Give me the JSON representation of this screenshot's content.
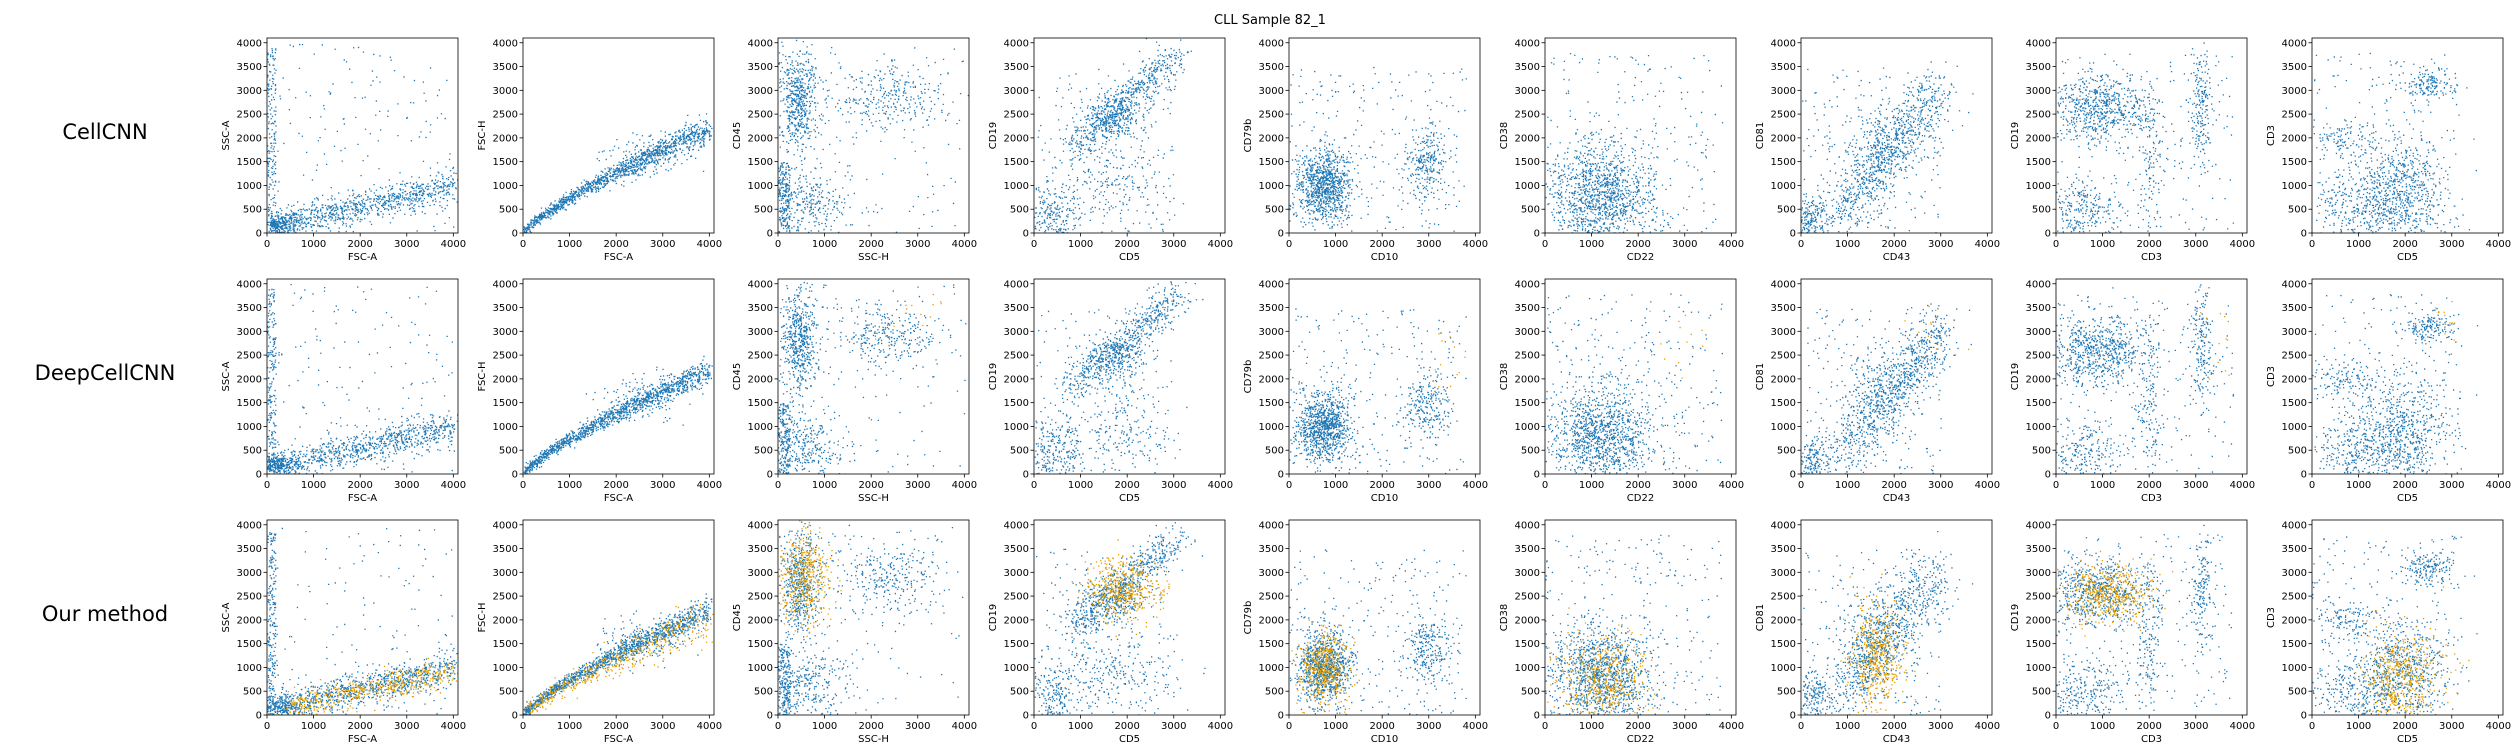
{
  "title": "CLL Sample 82_1",
  "rows": [
    "CellCNN",
    "DeepCellCNN",
    "Our method"
  ],
  "colors": {
    "background_cells": "#1f77b4",
    "selected_cells": "#e69f00",
    "axes": "#000000"
  },
  "chart_data": {
    "type": "scatter",
    "title": "CLL Sample 82_1",
    "grid": false,
    "layout": "3 rows x 9 columns of scatter panels",
    "row_labels": [
      "CellCNN",
      "DeepCellCNN",
      "Our method"
    ],
    "series": [
      {
        "color": "#1f77b4",
        "role": "all cells"
      },
      {
        "color": "#e69f00",
        "role": "cells selected by method (overlay)"
      }
    ],
    "panels": [
      {
        "xlabel": "FSC-A",
        "ylabel": "SSC-A",
        "xlim": [
          0,
          4100
        ],
        "ylim": [
          0,
          4100
        ],
        "xticks": [
          "0",
          "1000",
          "2000",
          "3000",
          "4000"
        ],
        "yticks": [
          "0",
          "500",
          "1000",
          "1500",
          "2000",
          "2500",
          "3000",
          "3500",
          "4000"
        ]
      },
      {
        "xlabel": "FSC-A",
        "ylabel": "FSC-H",
        "xlim": [
          0,
          4100
        ],
        "ylim": [
          0,
          4100
        ],
        "xticks": [
          "0",
          "1000",
          "2000",
          "3000",
          "4000"
        ],
        "yticks": [
          "0",
          "500",
          "1000",
          "1500",
          "2000",
          "2500",
          "3000",
          "3500",
          "4000"
        ]
      },
      {
        "xlabel": "SSC-H",
        "ylabel": "CD45",
        "xlim": [
          0,
          4100
        ],
        "ylim": [
          0,
          4100
        ],
        "xticks": [
          "0",
          "1000",
          "2000",
          "3000",
          "4000"
        ],
        "yticks": [
          "0",
          "500",
          "1000",
          "1500",
          "2000",
          "2500",
          "3000",
          "3500",
          "4000"
        ]
      },
      {
        "xlabel": "CD5",
        "ylabel": "CD19",
        "xlim": [
          0,
          4100
        ],
        "ylim": [
          0,
          4100
        ],
        "xticks": [
          "0",
          "1000",
          "2000",
          "3000",
          "4000"
        ],
        "yticks": [
          "0",
          "500",
          "1000",
          "1500",
          "2000",
          "2500",
          "3000",
          "3500",
          "4000"
        ]
      },
      {
        "xlabel": "CD10",
        "ylabel": "CD79b",
        "xlim": [
          0,
          4100
        ],
        "ylim": [
          0,
          4100
        ],
        "xticks": [
          "0",
          "1000",
          "2000",
          "3000",
          "4000"
        ],
        "yticks": [
          "0",
          "500",
          "1000",
          "1500",
          "2000",
          "2500",
          "3000",
          "3500",
          "4000"
        ]
      },
      {
        "xlabel": "CD22",
        "ylabel": "CD38",
        "xlim": [
          0,
          4100
        ],
        "ylim": [
          0,
          4100
        ],
        "xticks": [
          "0",
          "1000",
          "2000",
          "3000",
          "4000"
        ],
        "yticks": [
          "0",
          "500",
          "1000",
          "1500",
          "2000",
          "2500",
          "3000",
          "3500",
          "4000"
        ]
      },
      {
        "xlabel": "CD43",
        "ylabel": "CD81",
        "xlim": [
          0,
          4100
        ],
        "ylim": [
          0,
          4100
        ],
        "xticks": [
          "0",
          "1000",
          "2000",
          "3000",
          "4000"
        ],
        "yticks": [
          "0",
          "500",
          "1000",
          "1500",
          "2000",
          "2500",
          "3000",
          "3500",
          "4000"
        ]
      },
      {
        "xlabel": "CD3",
        "ylabel": "CD19",
        "xlim": [
          0,
          4100
        ],
        "ylim": [
          0,
          4100
        ],
        "xticks": [
          "0",
          "1000",
          "2000",
          "3000",
          "4000"
        ],
        "yticks": [
          "0",
          "500",
          "1000",
          "1500",
          "2000",
          "2500",
          "3000",
          "3500",
          "4000"
        ]
      },
      {
        "xlabel": "CD5",
        "ylabel": "CD3",
        "xlim": [
          0,
          4100
        ],
        "ylim": [
          0,
          4100
        ],
        "xticks": [
          "0",
          "1000",
          "2000",
          "3000",
          "4000"
        ],
        "yticks": [
          "0",
          "500",
          "1000",
          "1500",
          "2000",
          "2500",
          "3000",
          "3500",
          "4000"
        ]
      }
    ],
    "clusters": [
      [
        {
          "kind": "uniform",
          "x": [
            0,
            4000
          ],
          "y": [
            0,
            4000
          ],
          "weight": 0.12
        },
        {
          "kind": "strip",
          "x": [
            0,
            180
          ],
          "y": [
            100,
            3900
          ],
          "weight": 0.14
        },
        {
          "kind": "line",
          "x": [
            100,
            4000
          ],
          "y": [
            150,
            1000
          ],
          "sx": 80,
          "sy": 170,
          "weight": 0.6
        },
        {
          "kind": "gauss",
          "cx": 250,
          "cy": 200,
          "sx": 200,
          "sy": 120,
          "weight": 0.14
        }
      ],
      [
        {
          "kind": "curve",
          "x": [
            0,
            4000
          ],
          "y": [
            0,
            2200
          ],
          "pow": 0.78,
          "sx": 50,
          "sy": 120,
          "weight": 0.9
        },
        {
          "kind": "gauss",
          "cx": 2600,
          "cy": 1600,
          "sx": 450,
          "sy": 250,
          "weight": 0.1
        }
      ],
      [
        {
          "kind": "gauss",
          "cx": 450,
          "cy": 2800,
          "sx": 220,
          "sy": 550,
          "weight": 0.38
        },
        {
          "kind": "gauss",
          "cx": 2400,
          "cy": 2900,
          "sx": 550,
          "sy": 350,
          "weight": 0.2
        },
        {
          "kind": "gauss",
          "cx": 550,
          "cy": 650,
          "sx": 450,
          "sy": 350,
          "weight": 0.22
        },
        {
          "kind": "strip",
          "x": [
            0,
            250
          ],
          "y": [
            0,
            1500
          ],
          "weight": 0.12
        },
        {
          "kind": "uniform",
          "x": [
            0,
            4000
          ],
          "y": [
            0,
            4000
          ],
          "weight": 0.08
        }
      ],
      [
        {
          "kind": "line",
          "x": [
            800,
            3100
          ],
          "y": [
            1800,
            3800
          ],
          "sx": 200,
          "sy": 180,
          "weight": 0.42
        },
        {
          "kind": "gauss",
          "cx": 1700,
          "cy": 2450,
          "sx": 350,
          "sy": 250,
          "weight": 0.16
        },
        {
          "kind": "gauss",
          "cx": 400,
          "cy": 450,
          "sx": 350,
          "sy": 400,
          "weight": 0.18
        },
        {
          "kind": "gauss",
          "cx": 1800,
          "cy": 900,
          "sx": 600,
          "sy": 450,
          "weight": 0.14
        },
        {
          "kind": "uniform",
          "x": [
            0,
            3000
          ],
          "y": [
            0,
            3500
          ],
          "weight": 0.1
        }
      ],
      [
        {
          "kind": "gauss",
          "cx": 750,
          "cy": 1000,
          "sx": 280,
          "sy": 380,
          "weight": 0.66
        },
        {
          "kind": "gauss",
          "cx": 2950,
          "cy": 1450,
          "sx": 250,
          "sy": 380,
          "weight": 0.16
        },
        {
          "kind": "uniform",
          "x": [
            0,
            3800
          ],
          "y": [
            0,
            3500
          ],
          "weight": 0.18
        }
      ],
      [
        {
          "kind": "gauss",
          "cx": 1200,
          "cy": 800,
          "sx": 550,
          "sy": 550,
          "weight": 0.82
        },
        {
          "kind": "uniform",
          "x": [
            0,
            3800
          ],
          "y": [
            0,
            3800
          ],
          "weight": 0.18
        }
      ],
      [
        {
          "kind": "line",
          "x": [
            800,
            3000
          ],
          "y": [
            400,
            3000
          ],
          "sx": 250,
          "sy": 350,
          "weight": 0.55
        },
        {
          "kind": "gauss",
          "cx": 1600,
          "cy": 1700,
          "sx": 300,
          "sy": 500,
          "weight": 0.15
        },
        {
          "kind": "gauss",
          "cx": 200,
          "cy": 300,
          "sx": 250,
          "sy": 300,
          "weight": 0.15
        },
        {
          "kind": "uniform",
          "x": [
            0,
            3000
          ],
          "y": [
            0,
            3500
          ],
          "weight": 0.15
        }
      ],
      [
        {
          "kind": "gauss",
          "cx": 900,
          "cy": 2600,
          "sx": 550,
          "sy": 350,
          "weight": 0.46
        },
        {
          "kind": "gauss",
          "cx": 3100,
          "cy": 2700,
          "sx": 120,
          "sy": 600,
          "weight": 0.12
        },
        {
          "kind": "gauss",
          "cx": 2000,
          "cy": 1500,
          "sx": 150,
          "sy": 800,
          "weight": 0.1
        },
        {
          "kind": "gauss",
          "cx": 600,
          "cy": 450,
          "sx": 450,
          "sy": 350,
          "weight": 0.18
        },
        {
          "kind": "uniform",
          "x": [
            0,
            3800
          ],
          "y": [
            0,
            3800
          ],
          "weight": 0.14
        }
      ],
      [
        {
          "kind": "gauss",
          "cx": 2500,
          "cy": 3100,
          "sx": 300,
          "sy": 180,
          "weight": 0.12
        },
        {
          "kind": "gauss",
          "cx": 1900,
          "cy": 900,
          "sx": 500,
          "sy": 600,
          "weight": 0.48
        },
        {
          "kind": "gauss",
          "cx": 900,
          "cy": 500,
          "sx": 550,
          "sy": 400,
          "weight": 0.2
        },
        {
          "kind": "gauss",
          "cx": 700,
          "cy": 2000,
          "sx": 350,
          "sy": 200,
          "weight": 0.08
        },
        {
          "kind": "uniform",
          "x": [
            0,
            3200
          ],
          "y": [
            0,
            3800
          ],
          "weight": 0.12
        }
      ]
    ],
    "selected": [
      [
        null,
        null,
        null,
        null,
        null,
        null,
        null,
        null,
        null
      ],
      [
        null,
        null,
        [
          {
            "kind": "uniform",
            "x": [
              2000,
              3500
            ],
            "y": [
              2700,
              3800
            ],
            "weight": 1
          }
        ],
        null,
        [
          {
            "kind": "uniform",
            "x": [
              3000,
              3800
            ],
            "y": [
              1500,
              3000
            ],
            "weight": 1
          }
        ],
        [
          {
            "kind": "uniform",
            "x": [
              2200,
              3500
            ],
            "y": [
              2000,
              3600
            ],
            "weight": 1
          }
        ],
        [
          {
            "kind": "gauss",
            "cx": 2700,
            "cy": 3000,
            "sx": 300,
            "sy": 400,
            "weight": 1
          }
        ],
        [
          {
            "kind": "uniform",
            "x": [
              3000,
              3800
            ],
            "y": [
              2000,
              3500
            ],
            "weight": 1
          }
        ],
        [
          {
            "kind": "uniform",
            "x": [
              2500,
              3100
            ],
            "y": [
              2800,
              3800
            ],
            "weight": 1
          }
        ]
      ],
      [
        [
          {
            "kind": "line",
            "x": [
              500,
              4000
            ],
            "y": [
              200,
              900
            ],
            "sx": 120,
            "sy": 150,
            "weight": 1
          }
        ],
        [
          {
            "kind": "curve",
            "x": [
              0,
              4000
            ],
            "y": [
              0,
              2000
            ],
            "pow": 0.8,
            "sx": 80,
            "sy": 200,
            "weight": 1
          }
        ],
        [
          {
            "kind": "gauss",
            "cx": 550,
            "cy": 2900,
            "sx": 280,
            "sy": 500,
            "weight": 1
          }
        ],
        [
          {
            "kind": "gauss",
            "cx": 1900,
            "cy": 2650,
            "sx": 380,
            "sy": 320,
            "weight": 1
          }
        ],
        [
          {
            "kind": "gauss",
            "cx": 750,
            "cy": 1000,
            "sx": 260,
            "sy": 380,
            "weight": 1
          }
        ],
        [
          {
            "kind": "gauss",
            "cx": 1300,
            "cy": 800,
            "sx": 500,
            "sy": 500,
            "weight": 1
          }
        ],
        [
          {
            "kind": "gauss",
            "cx": 1600,
            "cy": 1200,
            "sx": 280,
            "sy": 550,
            "weight": 1
          }
        ],
        [
          {
            "kind": "gauss",
            "cx": 1100,
            "cy": 2600,
            "sx": 450,
            "sy": 300,
            "weight": 1
          }
        ],
        [
          {
            "kind": "gauss",
            "cx": 1900,
            "cy": 800,
            "sx": 400,
            "sy": 500,
            "weight": 1
          }
        ]
      ]
    ],
    "selected_fraction": [
      0,
      0.01,
      0.35
    ]
  }
}
